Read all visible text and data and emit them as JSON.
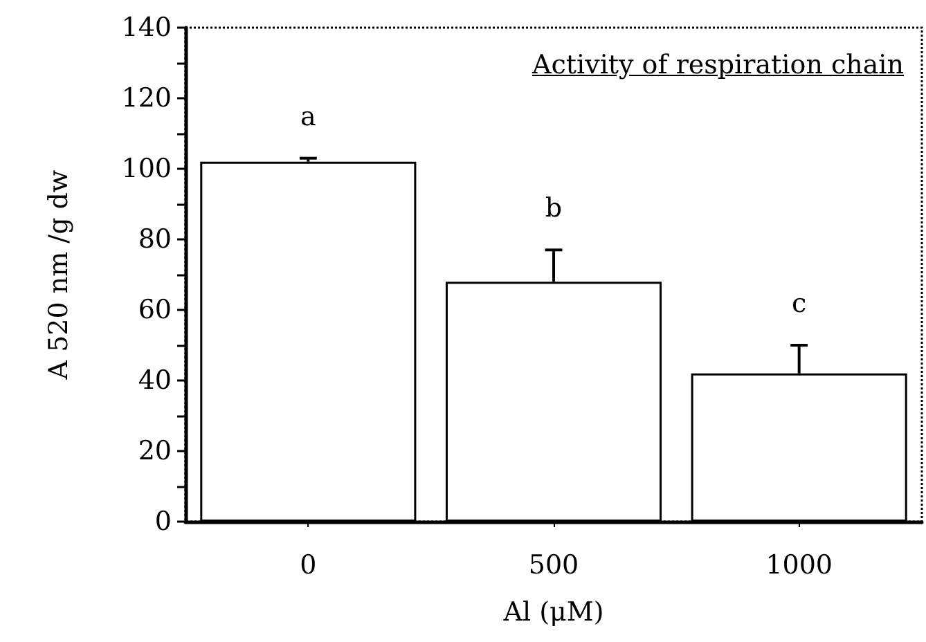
{
  "chart_data": {
    "type": "bar",
    "title": "Activity of respiration chain",
    "xlabel": "Al (μM)",
    "ylabel": "A 520 nm /g dw",
    "categories": [
      "0",
      "500",
      "1000"
    ],
    "values": [
      102,
      68,
      42
    ],
    "color": "#ffffff",
    "errors": [
      [
        102,
        103
      ],
      [
        68,
        77
      ],
      [
        42,
        50
      ]
    ],
    "ylim": [
      0,
      140
    ],
    "yticks": [
      0,
      {
        "value": 10,
        "label": null
      },
      20,
      {
        "value": 30,
        "label": null
      },
      40,
      {
        "value": 50,
        "label": null
      },
      60,
      {
        "value": 70,
        "label": null
      },
      80,
      {
        "value": 90,
        "label": null
      },
      100,
      {
        "value": 110,
        "label": null
      },
      120,
      {
        "value": 130,
        "label": null
      },
      140
    ],
    "annotations": [
      "a",
      "b",
      "c"
    ],
    "grid": false
  }
}
